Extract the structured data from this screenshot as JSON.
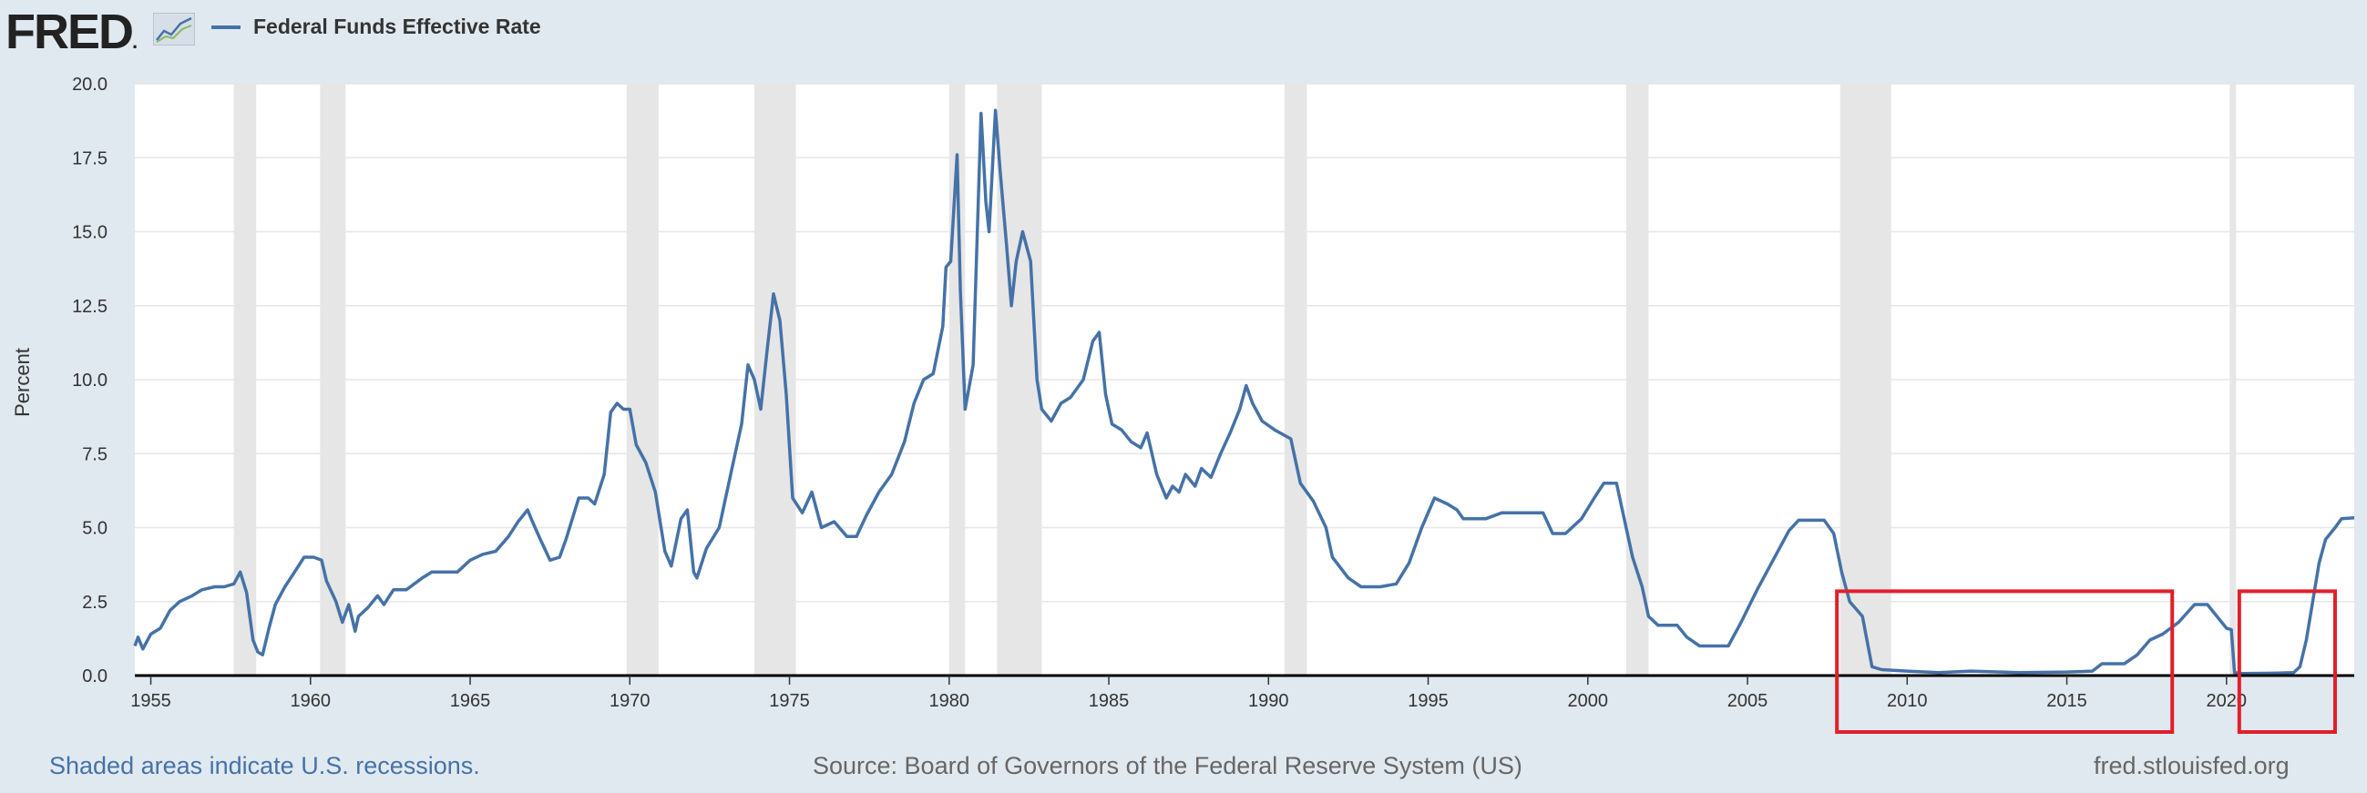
{
  "header": {
    "logo_text": "FRED",
    "logo_mark": ".",
    "logo_icon": "line-chart-icon",
    "legend_label": "Federal Funds Effective Rate",
    "legend_color": "#4572a7"
  },
  "footer": {
    "note": "Shaded areas indicate U.S. recessions.",
    "source": "Source: Board of Governors of the Federal Reserve System (US)",
    "site": "fred.stlouisfed.org"
  },
  "chart_data": {
    "type": "line",
    "title": "",
    "ylabel": "Percent",
    "xlabel": "",
    "xlim": [
      1954.5,
      2024.0
    ],
    "ylim": [
      0,
      20
    ],
    "grid": true,
    "line_color": "#4572a7",
    "yticks": [
      "0.0",
      "2.5",
      "5.0",
      "7.5",
      "10.0",
      "12.5",
      "15.0",
      "17.5",
      "20.0"
    ],
    "xticks": [
      "1955",
      "1960",
      "1965",
      "1970",
      "1975",
      "1980",
      "1985",
      "1990",
      "1995",
      "2000",
      "2005",
      "2010",
      "2015",
      "2020"
    ],
    "recessions": [
      [
        1957.6,
        1958.3
      ],
      [
        1960.3,
        1961.1
      ],
      [
        1969.9,
        1970.9
      ],
      [
        1973.9,
        1975.2
      ],
      [
        1980.0,
        1980.5
      ],
      [
        1981.5,
        1982.9
      ],
      [
        1990.5,
        1991.2
      ],
      [
        2001.2,
        2001.9
      ],
      [
        2007.9,
        2009.5
      ],
      [
        2020.1,
        2020.3
      ]
    ],
    "highlights": [
      [
        2007.8,
        2018.3
      ],
      [
        2020.4,
        2023.4
      ]
    ],
    "highlight_ymax": 2.85,
    "highlight_color": "#e0202a",
    "series": [
      {
        "name": "Federal Funds Effective Rate",
        "points": [
          [
            1954.5,
            1.0
          ],
          [
            1954.6,
            1.3
          ],
          [
            1954.75,
            0.9
          ],
          [
            1955.0,
            1.4
          ],
          [
            1955.3,
            1.6
          ],
          [
            1955.6,
            2.2
          ],
          [
            1955.9,
            2.5
          ],
          [
            1956.3,
            2.7
          ],
          [
            1956.6,
            2.9
          ],
          [
            1957.0,
            3.0
          ],
          [
            1957.3,
            3.0
          ],
          [
            1957.6,
            3.1
          ],
          [
            1957.8,
            3.5
          ],
          [
            1958.0,
            2.8
          ],
          [
            1958.2,
            1.2
          ],
          [
            1958.35,
            0.8
          ],
          [
            1958.5,
            0.7
          ],
          [
            1958.7,
            1.6
          ],
          [
            1958.9,
            2.4
          ],
          [
            1959.2,
            3.0
          ],
          [
            1959.5,
            3.5
          ],
          [
            1959.8,
            4.0
          ],
          [
            1960.1,
            4.0
          ],
          [
            1960.35,
            3.9
          ],
          [
            1960.5,
            3.2
          ],
          [
            1960.8,
            2.5
          ],
          [
            1961.0,
            1.8
          ],
          [
            1961.2,
            2.4
          ],
          [
            1961.4,
            1.5
          ],
          [
            1961.5,
            2.0
          ],
          [
            1961.8,
            2.3
          ],
          [
            1962.1,
            2.7
          ],
          [
            1962.3,
            2.4
          ],
          [
            1962.6,
            2.9
          ],
          [
            1963.0,
            2.9
          ],
          [
            1963.5,
            3.3
          ],
          [
            1963.8,
            3.5
          ],
          [
            1964.2,
            3.5
          ],
          [
            1964.6,
            3.5
          ],
          [
            1965.0,
            3.9
          ],
          [
            1965.4,
            4.1
          ],
          [
            1965.8,
            4.2
          ],
          [
            1966.2,
            4.7
          ],
          [
            1966.5,
            5.2
          ],
          [
            1966.8,
            5.6
          ],
          [
            1966.95,
            5.2
          ],
          [
            1967.2,
            4.6
          ],
          [
            1967.5,
            3.9
          ],
          [
            1967.8,
            4.0
          ],
          [
            1968.0,
            4.6
          ],
          [
            1968.4,
            6.0
          ],
          [
            1968.7,
            6.0
          ],
          [
            1968.9,
            5.8
          ],
          [
            1969.2,
            6.8
          ],
          [
            1969.4,
            8.9
          ],
          [
            1969.6,
            9.2
          ],
          [
            1969.8,
            9.0
          ],
          [
            1970.0,
            9.0
          ],
          [
            1970.2,
            7.8
          ],
          [
            1970.5,
            7.2
          ],
          [
            1970.8,
            6.2
          ],
          [
            1971.1,
            4.2
          ],
          [
            1971.3,
            3.7
          ],
          [
            1971.6,
            5.3
          ],
          [
            1971.8,
            5.6
          ],
          [
            1972.0,
            3.5
          ],
          [
            1972.1,
            3.3
          ],
          [
            1972.4,
            4.3
          ],
          [
            1972.8,
            5.0
          ],
          [
            1973.2,
            7.0
          ],
          [
            1973.5,
            8.5
          ],
          [
            1973.7,
            10.5
          ],
          [
            1973.9,
            10.0
          ],
          [
            1974.1,
            9.0
          ],
          [
            1974.3,
            11.0
          ],
          [
            1974.5,
            12.9
          ],
          [
            1974.7,
            12.0
          ],
          [
            1974.9,
            9.5
          ],
          [
            1975.1,
            6.0
          ],
          [
            1975.4,
            5.5
          ],
          [
            1975.7,
            6.2
          ],
          [
            1976.0,
            5.0
          ],
          [
            1976.4,
            5.2
          ],
          [
            1976.8,
            4.7
          ],
          [
            1977.1,
            4.7
          ],
          [
            1977.4,
            5.4
          ],
          [
            1977.8,
            6.2
          ],
          [
            1978.2,
            6.8
          ],
          [
            1978.6,
            7.9
          ],
          [
            1978.9,
            9.2
          ],
          [
            1979.2,
            10.0
          ],
          [
            1979.5,
            10.2
          ],
          [
            1979.8,
            11.8
          ],
          [
            1979.9,
            13.8
          ],
          [
            1980.05,
            14.0
          ],
          [
            1980.25,
            17.6
          ],
          [
            1980.35,
            13.0
          ],
          [
            1980.5,
            9.0
          ],
          [
            1980.75,
            10.5
          ],
          [
            1981.0,
            19.0
          ],
          [
            1981.15,
            16.0
          ],
          [
            1981.25,
            15.0
          ],
          [
            1981.45,
            19.1
          ],
          [
            1981.6,
            17.0
          ],
          [
            1981.8,
            14.5
          ],
          [
            1981.95,
            12.5
          ],
          [
            1982.1,
            14.0
          ],
          [
            1982.3,
            15.0
          ],
          [
            1982.55,
            14.0
          ],
          [
            1982.75,
            10.0
          ],
          [
            1982.9,
            9.0
          ],
          [
            1983.2,
            8.6
          ],
          [
            1983.5,
            9.2
          ],
          [
            1983.8,
            9.4
          ],
          [
            1984.2,
            10.0
          ],
          [
            1984.5,
            11.3
          ],
          [
            1984.7,
            11.6
          ],
          [
            1984.9,
            9.5
          ],
          [
            1985.1,
            8.5
          ],
          [
            1985.4,
            8.3
          ],
          [
            1985.7,
            7.9
          ],
          [
            1986.0,
            7.7
          ],
          [
            1986.2,
            8.2
          ],
          [
            1986.5,
            6.8
          ],
          [
            1986.8,
            6.0
          ],
          [
            1987.0,
            6.4
          ],
          [
            1987.2,
            6.2
          ],
          [
            1987.4,
            6.8
          ],
          [
            1987.7,
            6.4
          ],
          [
            1987.9,
            7.0
          ],
          [
            1988.2,
            6.7
          ],
          [
            1988.5,
            7.5
          ],
          [
            1988.8,
            8.2
          ],
          [
            1989.1,
            9.0
          ],
          [
            1989.3,
            9.8
          ],
          [
            1989.5,
            9.2
          ],
          [
            1989.8,
            8.6
          ],
          [
            1990.2,
            8.3
          ],
          [
            1990.7,
            8.0
          ],
          [
            1991.0,
            6.5
          ],
          [
            1991.4,
            5.9
          ],
          [
            1991.8,
            5.0
          ],
          [
            1992.0,
            4.0
          ],
          [
            1992.5,
            3.3
          ],
          [
            1992.9,
            3.0
          ],
          [
            1993.5,
            3.0
          ],
          [
            1994.0,
            3.1
          ],
          [
            1994.4,
            3.8
          ],
          [
            1994.8,
            5.0
          ],
          [
            1995.2,
            6.0
          ],
          [
            1995.6,
            5.8
          ],
          [
            1995.9,
            5.6
          ],
          [
            1996.1,
            5.3
          ],
          [
            1996.8,
            5.3
          ],
          [
            1997.3,
            5.5
          ],
          [
            1998.0,
            5.5
          ],
          [
            1998.6,
            5.5
          ],
          [
            1998.9,
            4.8
          ],
          [
            1999.3,
            4.8
          ],
          [
            1999.8,
            5.3
          ],
          [
            2000.2,
            6.0
          ],
          [
            2000.5,
            6.5
          ],
          [
            2000.9,
            6.5
          ],
          [
            2001.1,
            5.5
          ],
          [
            2001.4,
            4.0
          ],
          [
            2001.7,
            3.0
          ],
          [
            2001.9,
            2.0
          ],
          [
            2002.2,
            1.7
          ],
          [
            2002.8,
            1.7
          ],
          [
            2003.1,
            1.3
          ],
          [
            2003.5,
            1.0
          ],
          [
            2004.0,
            1.0
          ],
          [
            2004.4,
            1.0
          ],
          [
            2004.8,
            1.8
          ],
          [
            2005.3,
            2.9
          ],
          [
            2005.8,
            3.9
          ],
          [
            2006.3,
            4.9
          ],
          [
            2006.6,
            5.25
          ],
          [
            2007.4,
            5.25
          ],
          [
            2007.7,
            4.8
          ],
          [
            2007.95,
            3.5
          ],
          [
            2008.2,
            2.5
          ],
          [
            2008.6,
            2.0
          ],
          [
            2008.9,
            0.3
          ],
          [
            2009.2,
            0.2
          ],
          [
            2010.0,
            0.15
          ],
          [
            2011.0,
            0.1
          ],
          [
            2012.0,
            0.15
          ],
          [
            2013.5,
            0.1
          ],
          [
            2015.0,
            0.12
          ],
          [
            2015.8,
            0.15
          ],
          [
            2016.1,
            0.4
          ],
          [
            2016.8,
            0.4
          ],
          [
            2017.2,
            0.7
          ],
          [
            2017.6,
            1.2
          ],
          [
            2018.0,
            1.4
          ],
          [
            2018.5,
            1.8
          ],
          [
            2019.0,
            2.4
          ],
          [
            2019.4,
            2.4
          ],
          [
            2019.7,
            2.0
          ],
          [
            2020.0,
            1.6
          ],
          [
            2020.15,
            1.55
          ],
          [
            2020.25,
            0.1
          ],
          [
            2020.5,
            0.07
          ],
          [
            2021.5,
            0.08
          ],
          [
            2022.1,
            0.1
          ],
          [
            2022.3,
            0.3
          ],
          [
            2022.5,
            1.2
          ],
          [
            2022.7,
            2.5
          ],
          [
            2022.9,
            3.8
          ],
          [
            2023.1,
            4.6
          ],
          [
            2023.4,
            5.0
          ],
          [
            2023.6,
            5.3
          ],
          [
            2024.0,
            5.33
          ]
        ]
      }
    ]
  }
}
